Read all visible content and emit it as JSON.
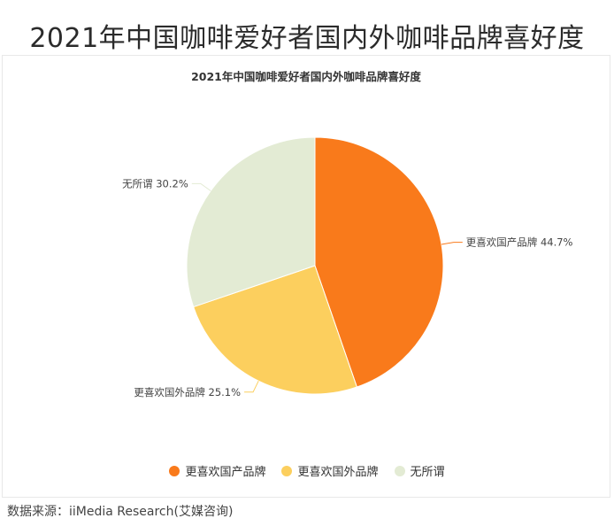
{
  "page": {
    "title": "2021年中国咖啡爱好者国内外咖啡品牌喜好度",
    "source": "数据来源：iiMedia Research(艾媒咨询)"
  },
  "chart_data": {
    "type": "pie",
    "title": "2021年中国咖啡爱好者国内外咖啡品牌喜好度",
    "unit": "%",
    "slices": [
      {
        "label": "更喜欢国产品牌",
        "value": 44.7,
        "color": "#F97A1B"
      },
      {
        "label": "更喜欢国外品牌",
        "value": 25.1,
        "color": "#FCCF5E"
      },
      {
        "label": "无所谓",
        "value": 30.2,
        "color": "#E3EBD4"
      }
    ],
    "data_labels": [
      "更喜欢国产品牌 44.7%",
      "更喜欢国外品牌 25.1%",
      "无所谓 30.2%"
    ],
    "legend": {
      "position": "bottom",
      "items": [
        "更喜欢国产品牌",
        "更喜欢国外品牌",
        "无所谓"
      ]
    },
    "start_angle_deg": 0,
    "direction": "clockwise"
  }
}
